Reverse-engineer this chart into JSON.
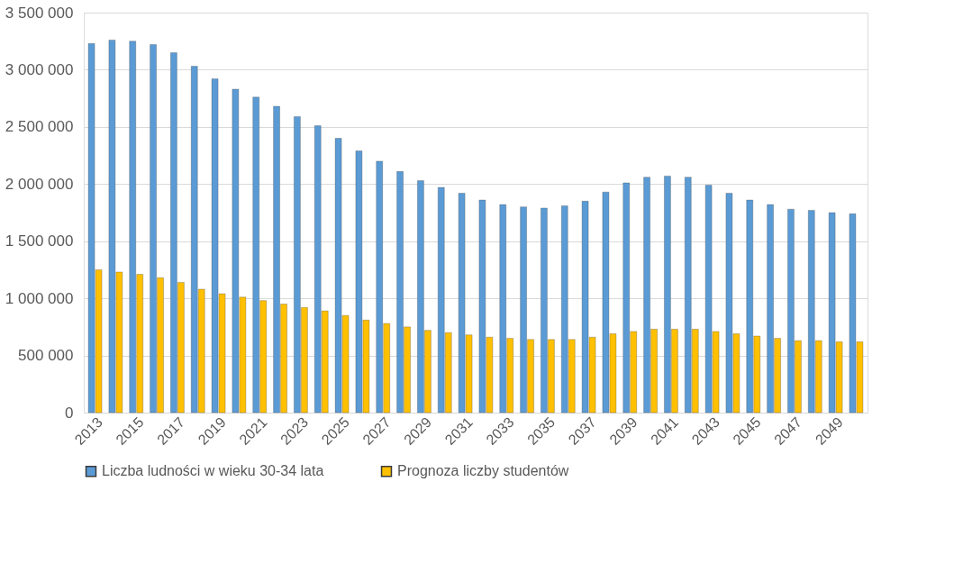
{
  "chart_data": {
    "type": "bar",
    "categories": [
      "2013",
      null,
      "2015",
      null,
      "2017",
      null,
      "2019",
      null,
      "2021",
      null,
      "2023",
      null,
      "2025",
      null,
      "2027",
      null,
      "2029",
      null,
      "2031",
      null,
      "2033",
      null,
      "2035",
      null,
      "2037",
      null,
      "2039",
      null,
      "2041",
      null,
      "2043",
      null,
      "2045",
      null,
      "2047",
      null,
      "2049",
      null
    ],
    "series": [
      {
        "name": "Liczba ludności w wieku 30-34 lata",
        "color": "#5b9bd5",
        "values": [
          3230000,
          3260000,
          3250000,
          3220000,
          3150000,
          3030000,
          2920000,
          2830000,
          2760000,
          2680000,
          2590000,
          2510000,
          2400000,
          2290000,
          2200000,
          2110000,
          2030000,
          1970000,
          1920000,
          1860000,
          1820000,
          1800000,
          1790000,
          1810000,
          1850000,
          1930000,
          2010000,
          2060000,
          2070000,
          2060000,
          1990000,
          1920000,
          1860000,
          1820000,
          1780000,
          1770000,
          1750000,
          1740000
        ]
      },
      {
        "name": "Prognoza liczby studentów",
        "color": "#ffc000",
        "values": [
          1250000,
          1230000,
          1210000,
          1180000,
          1140000,
          1080000,
          1040000,
          1010000,
          980000,
          950000,
          920000,
          890000,
          850000,
          810000,
          780000,
          750000,
          720000,
          700000,
          680000,
          660000,
          650000,
          640000,
          640000,
          640000,
          660000,
          690000,
          710000,
          730000,
          730000,
          730000,
          710000,
          690000,
          670000,
          650000,
          630000,
          630000,
          620000,
          620000
        ]
      }
    ],
    "ylim": [
      0,
      3500000
    ],
    "yticks": [
      0,
      {
        "value": 500000,
        "label": "500 000"
      },
      {
        "value": 1000000,
        "label": "1 000 000"
      },
      {
        "value": 1500000,
        "label": "1 500 000"
      },
      {
        "value": 2000000,
        "label": "2 000 000"
      },
      {
        "value": 2500000,
        "label": "2 500 000"
      },
      {
        "value": 3000000,
        "label": "3 000 000"
      },
      {
        "value": 3500000,
        "label": "3 500 000"
      }
    ],
    "grid": "y",
    "legend": "bottom"
  }
}
